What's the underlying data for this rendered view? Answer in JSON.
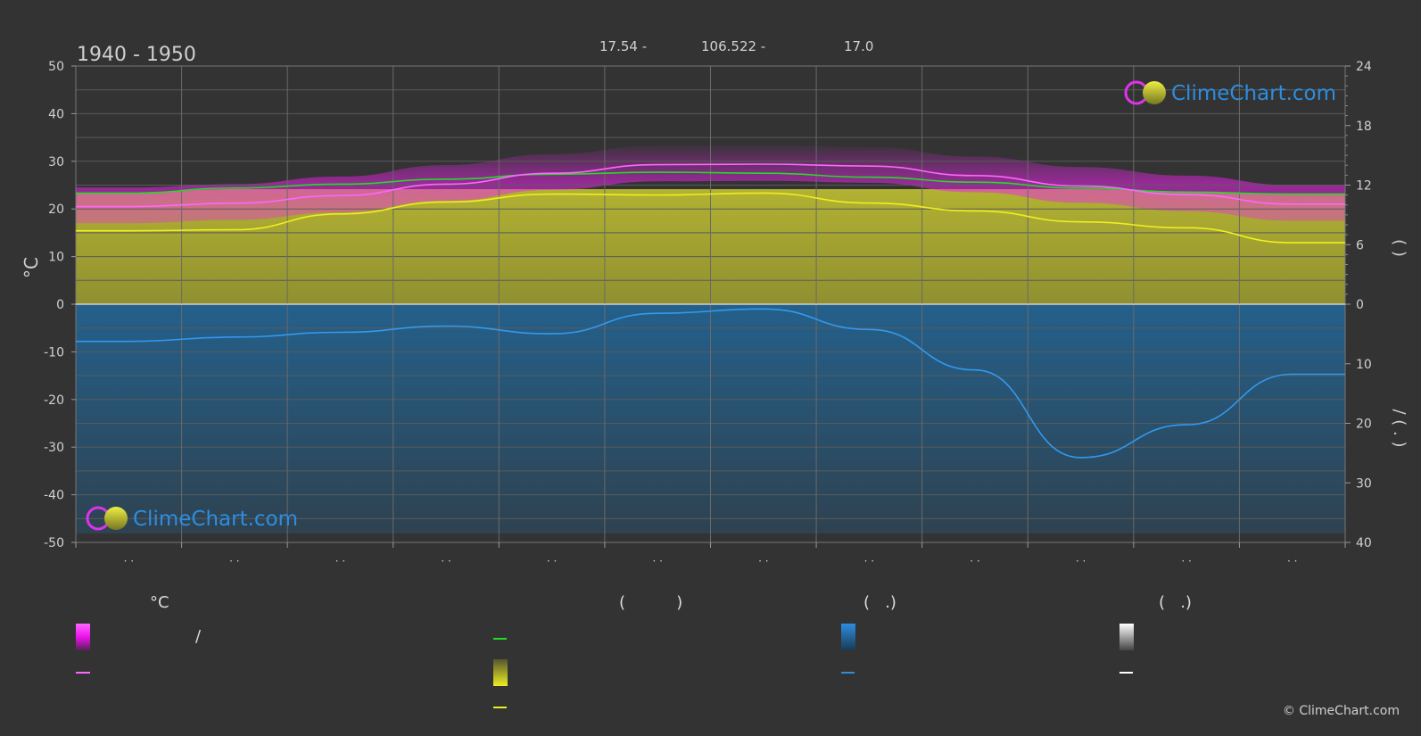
{
  "chart_data": {
    "type": "line",
    "title": "1940 - 1950",
    "header": [
      "17.54 -",
      "106.522 -",
      "17.0"
    ],
    "y_left_label": "°C",
    "y_left_ticks": [
      50,
      40,
      30,
      20,
      10,
      0,
      -10,
      -20,
      -30,
      -40,
      -50
    ],
    "y_right_top_ticks": [
      24,
      18,
      12,
      6,
      0
    ],
    "y_right_bottom_ticks": [
      10,
      20,
      30,
      40
    ],
    "y_right_top_label": "(   )",
    "y_right_bottom_label": "/   ( . )",
    "x_tick_labels": [
      "· ·",
      "· ·",
      "· ·",
      "· ·",
      "· ·",
      "· ·",
      "· ·",
      "· ·",
      "· ·",
      "· ·",
      "· ·",
      "· ·"
    ],
    "ylim_left": [
      -50,
      50
    ],
    "ylim_right_top": [
      0,
      24
    ],
    "ylim_right_bottom": [
      0,
      40
    ],
    "grid": true,
    "months": [
      1,
      2,
      3,
      4,
      5,
      6,
      7,
      8,
      9,
      10,
      11,
      12
    ],
    "series": [
      {
        "key": "daylight",
        "color": "#22dd22",
        "axis": "hours",
        "values": [
          11.2,
          11.7,
          12.1,
          12.6,
          13.1,
          13.3,
          13.2,
          12.8,
          12.3,
          11.7,
          11.3,
          11.1
        ]
      },
      {
        "key": "sunshine",
        "color": "#eeee22",
        "axis": "hours",
        "values": [
          7.4,
          7.5,
          9.1,
          10.3,
          11.1,
          11.0,
          11.2,
          10.2,
          9.4,
          8.3,
          7.7,
          6.2
        ]
      },
      {
        "key": "max_temp",
        "color": "#ff66ff",
        "axis": "temp",
        "values": [
          20.5,
          21.2,
          22.8,
          25.2,
          27.5,
          29.3,
          29.4,
          29.0,
          27.0,
          24.8,
          23.0,
          21.0
        ]
      },
      {
        "key": "precip",
        "color": "#3399ee",
        "axis": "precip",
        "values": [
          -7.8,
          -6.9,
          -5.9,
          -4.6,
          -6.2,
          -1.9,
          -1.0,
          -5.3,
          -13.8,
          -32.2,
          -25.3,
          -14.7
        ]
      }
    ]
  },
  "legend": {
    "col1_header": "°C",
    "col1_slash": "/",
    "col2_header": "(          )",
    "col3_header": "(   .)",
    "col4_header": "(   .)"
  },
  "logo_text": "ClimeChart.com",
  "copyright": "© ClimeChart.com",
  "colors": {
    "background": "#333333",
    "grid": "#5a5a5a",
    "magenta": "#ee22ee",
    "yellow": "#bdbd2c",
    "blue": "#1f6fa8",
    "logo_blue": "#2d8de0"
  }
}
